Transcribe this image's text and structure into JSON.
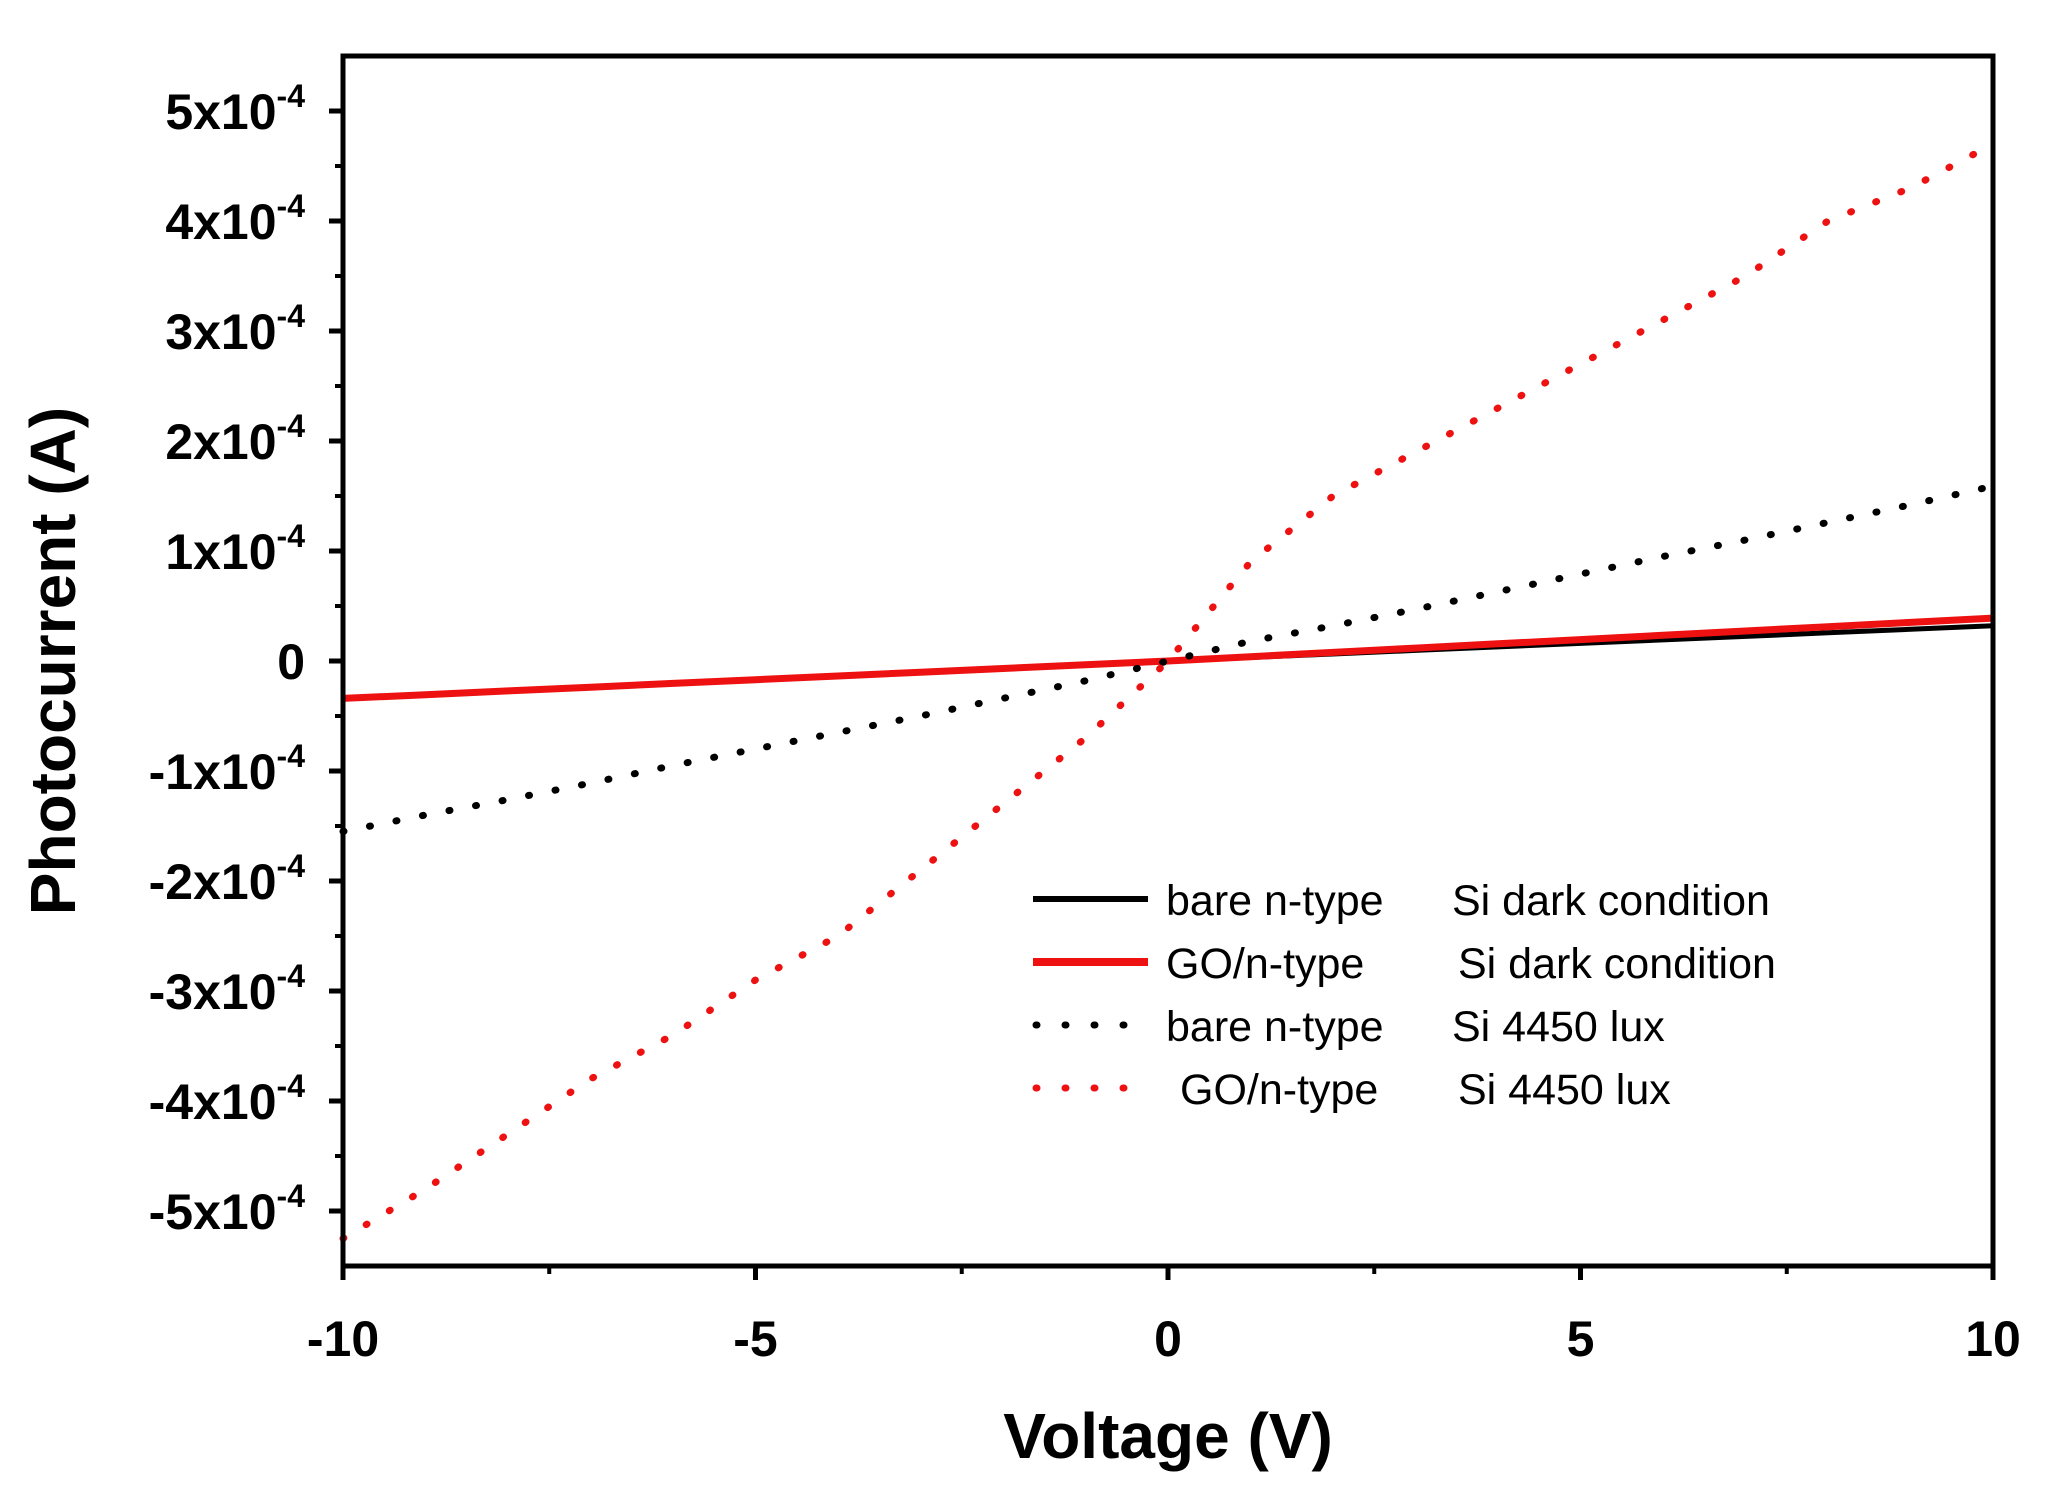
{
  "chart_data": {
    "type": "line",
    "xlabel": "Voltage (V)",
    "ylabel": "Photocurrent (A)",
    "xlim": [
      -10,
      10
    ],
    "ylim": [
      -0.00055,
      0.00055
    ],
    "x_ticks": [
      {
        "value": -10,
        "label": "-10"
      },
      {
        "value": -5,
        "label": "-5"
      },
      {
        "value": 0,
        "label": "0"
      },
      {
        "value": 5,
        "label": "5"
      },
      {
        "value": 10,
        "label": "10"
      }
    ],
    "y_ticks": [
      {
        "value": 0.0005,
        "base": "5x10",
        "exp": "-4"
      },
      {
        "value": 0.0004,
        "base": "4x10",
        "exp": "-4"
      },
      {
        "value": 0.0003,
        "base": "3x10",
        "exp": "-4"
      },
      {
        "value": 0.0002,
        "base": "2x10",
        "exp": "-4"
      },
      {
        "value": 0.0001,
        "base": "1x10",
        "exp": "-4"
      },
      {
        "value": 0,
        "base": "0",
        "exp": ""
      },
      {
        "value": -0.0001,
        "base": "-1x10",
        "exp": "-4"
      },
      {
        "value": -0.0002,
        "base": "-2x10",
        "exp": "-4"
      },
      {
        "value": -0.0003,
        "base": "-3x10",
        "exp": "-4"
      },
      {
        "value": -0.0004,
        "base": "-4x10",
        "exp": "-4"
      },
      {
        "value": -0.0005,
        "base": "-5x10",
        "exp": "-4"
      }
    ],
    "x": [
      -10,
      -9,
      -8,
      -7,
      -6,
      -5,
      -4,
      -3,
      -2,
      -1,
      0,
      1,
      2,
      3,
      4,
      5,
      6,
      7,
      8,
      9,
      10
    ],
    "series": [
      {
        "name": "bare n-type  Si dark condition",
        "color": "#000000",
        "style": "solid",
        "values": [
          -3.4e-05,
          -3.06e-05,
          -2.72e-05,
          -2.38e-05,
          -2.04e-05,
          -1.7e-05,
          -1.36e-05,
          -1.02e-05,
          -6.8e-06,
          -3.4e-06,
          0,
          3.2e-06,
          6.4e-06,
          9.6e-06,
          1.28e-05,
          1.6e-05,
          1.92e-05,
          2.24e-05,
          2.56e-05,
          2.88e-05,
          3.2e-05
        ]
      },
      {
        "name": "GO/n-type    Si dark condition",
        "color": "#ee1111",
        "style": "solid",
        "values": [
          -3.4e-05,
          -3.06e-05,
          -2.72e-05,
          -2.38e-05,
          -2.04e-05,
          -1.7e-05,
          -1.36e-05,
          -1.02e-05,
          -6.8e-06,
          -3.4e-06,
          0,
          3.9e-06,
          7.8e-06,
          1.17e-05,
          1.56e-05,
          1.95e-05,
          2.34e-05,
          2.73e-05,
          3.12e-05,
          3.51e-05,
          3.9e-05
        ]
      },
      {
        "name": "bare n-type  Si 4450 lux",
        "color": "#000000",
        "style": "dotted",
        "values": [
          -0.000155,
          -0.00014,
          -0.000126,
          -0.000111,
          -9.5e-05,
          -8e-05,
          -6.5e-05,
          -5e-05,
          -3.4e-05,
          -1.8e-05,
          0,
          1.8e-05,
          3.2e-05,
          4.7e-05,
          6.3e-05,
          7.9e-05,
          9.5e-05,
          0.00011,
          0.000126,
          0.000142,
          0.000159
        ]
      },
      {
        "name": "GO/n-type    Si 4450 lux",
        "color": "#ee1111",
        "style": "dotted",
        "values": [
          -0.000525,
          -0.00048,
          -0.00043,
          -0.00038,
          -0.00034,
          -0.00029,
          -0.00025,
          -0.00019,
          -0.00013,
          -7e-05,
          0,
          9e-05,
          0.00015,
          0.00019,
          0.00023,
          0.00027,
          0.00031,
          0.00035,
          0.0004,
          0.00043,
          0.00047
        ]
      }
    ],
    "legend": {
      "placement": "lower-right",
      "entries": [
        {
          "label_a": "bare n-type",
          "label_b": "Si dark condition"
        },
        {
          "label_a": "GO/n-type",
          "label_b": "Si dark condition"
        },
        {
          "label_a": "bare n-type",
          "label_b": "Si 4450 lux"
        },
        {
          "label_a": "GO/n-type",
          "label_b": "Si 4450 lux"
        }
      ]
    },
    "grid": false
  }
}
